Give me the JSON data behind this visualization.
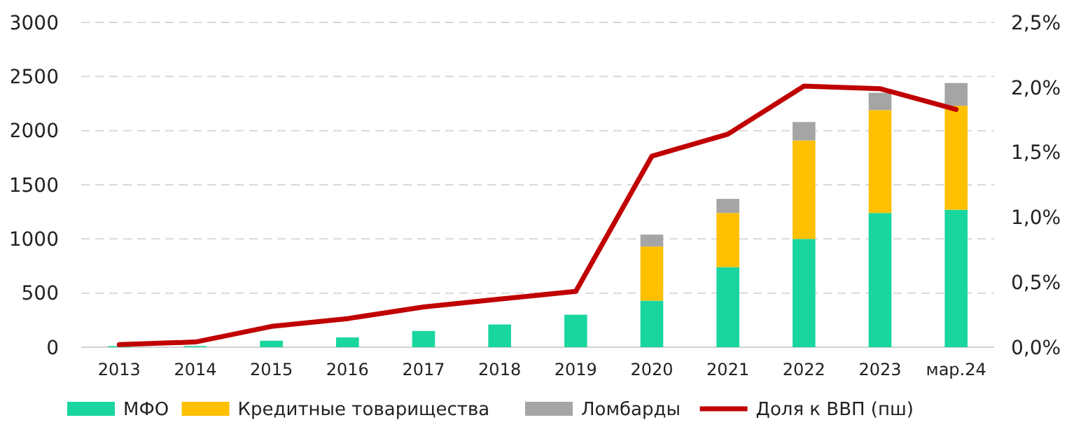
{
  "chart_data": {
    "type": "bar",
    "stacked": true,
    "categories": [
      "2013",
      "2014",
      "2015",
      "2016",
      "2017",
      "2018",
      "2019",
      "2020",
      "2021",
      "2022",
      "2023",
      "мар.24"
    ],
    "series": [
      {
        "name": "МФО",
        "color": "#19d69e",
        "values": [
          10,
          10,
          60,
          90,
          150,
          210,
          300,
          430,
          740,
          1000,
          1240,
          1270
        ]
      },
      {
        "name": "Кредитные товарищества",
        "color": "#ffc000",
        "values": [
          null,
          null,
          null,
          null,
          null,
          null,
          null,
          500,
          500,
          910,
          950,
          960
        ]
      },
      {
        "name": "Ломбарды",
        "color": "#a5a5a5",
        "values": [
          null,
          null,
          null,
          null,
          null,
          null,
          null,
          110,
          130,
          170,
          160,
          210
        ]
      },
      {
        "name": "Доля к ВВП (пш)",
        "type": "line",
        "axis": "y2",
        "color": "#c00000",
        "values": [
          0.02,
          0.04,
          0.16,
          0.22,
          0.31,
          0.37,
          0.43,
          1.47,
          1.64,
          2.01,
          1.99,
          1.83
        ]
      }
    ],
    "ylim": [
      0,
      3000
    ],
    "yticks": [
      0,
      500,
      1000,
      1500,
      2000,
      2500,
      3000
    ],
    "y2lim": [
      0,
      2.5
    ],
    "y2ticks": [
      {
        "value": 0,
        "label": "0,0%"
      },
      {
        "value": 0.5,
        "label": "0,5%"
      },
      {
        "value": 1,
        "label": "1,0%"
      },
      {
        "value": 1.5,
        "label": "1,5%"
      },
      {
        "value": 2,
        "label": "2,0%"
      },
      {
        "value": 2.5,
        "label": "2,5%"
      }
    ],
    "grid": "y",
    "legend": "bottom",
    "line_style": "solid",
    "marker": "none"
  }
}
